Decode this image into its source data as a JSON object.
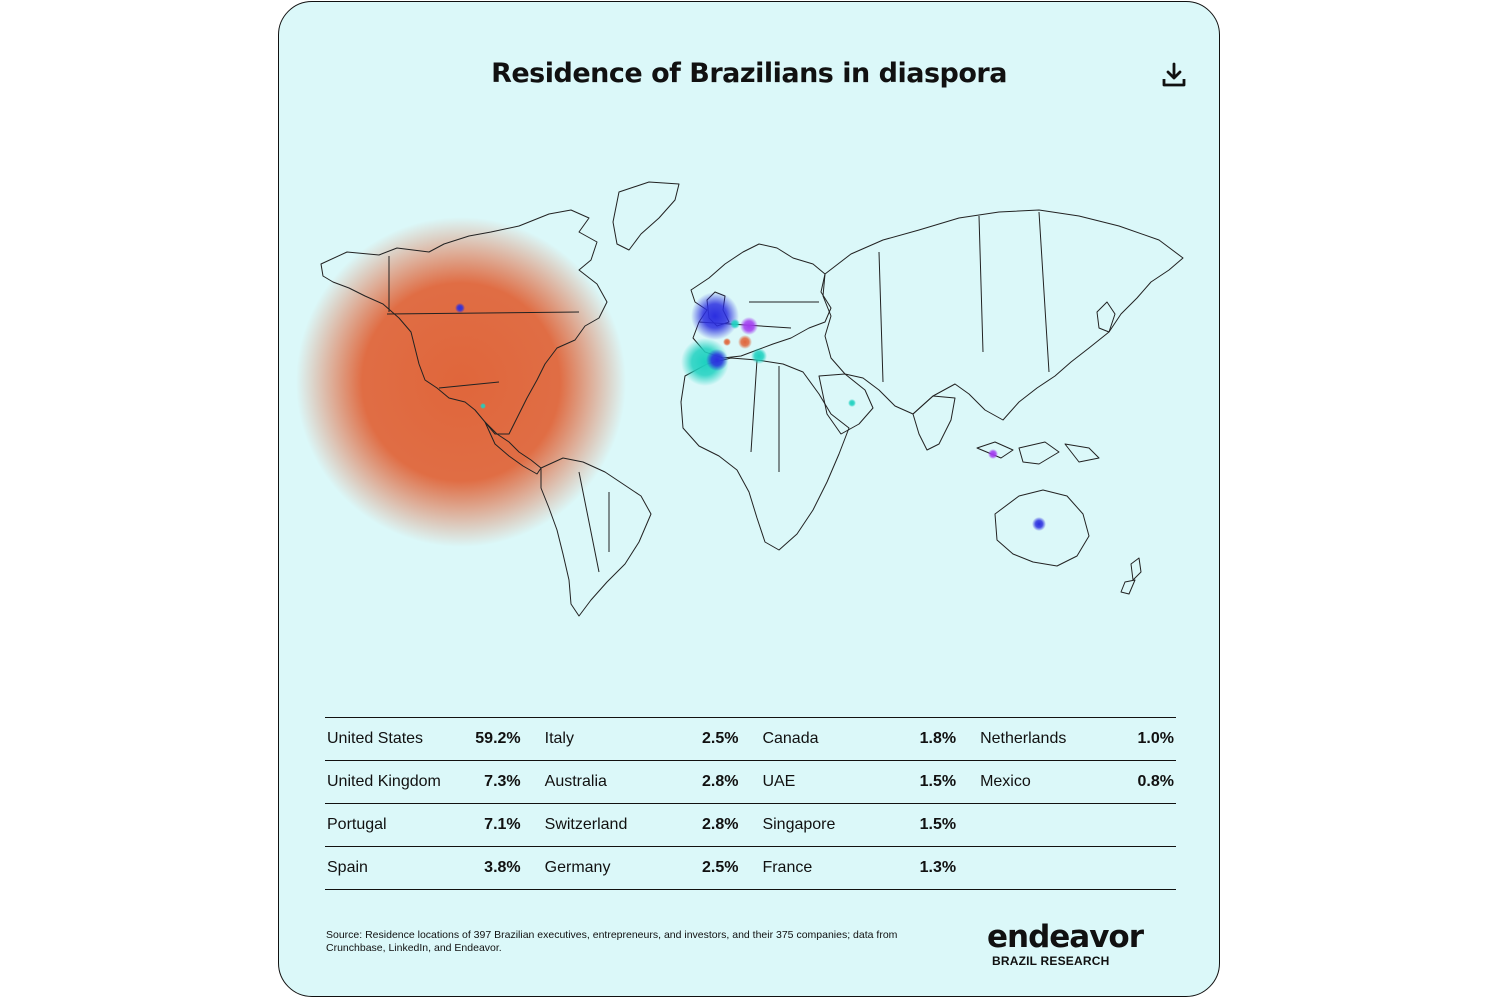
{
  "title": "Residence of Brazilians in diaspora",
  "download_icon": "download-icon",
  "colors": {
    "background": "#dbf8f9",
    "us_bubble": "#e0663b",
    "blue": "#2b2ee0",
    "teal": "#1fd1c0",
    "purple": "#a23cf0",
    "orange": "#e0663b"
  },
  "legend": [
    [
      {
        "name": "United States",
        "value": "59.2%"
      },
      {
        "name": "Italy",
        "value": "2.5%"
      },
      {
        "name": "Canada",
        "value": "1.8%"
      },
      {
        "name": "Netherlands",
        "value": "1.0%"
      }
    ],
    [
      {
        "name": "United Kingdom",
        "value": "7.3%"
      },
      {
        "name": "Australia",
        "value": "2.8%"
      },
      {
        "name": "UAE",
        "value": "1.5%"
      },
      {
        "name": "Mexico",
        "value": "0.8%"
      }
    ],
    [
      {
        "name": "Portugal",
        "value": "7.1%"
      },
      {
        "name": "Switzerland",
        "value": "2.8%"
      },
      {
        "name": "Singapore",
        "value": "1.5%"
      }
    ],
    [
      {
        "name": "Spain",
        "value": "3.8%"
      },
      {
        "name": "Germany",
        "value": "2.5%"
      },
      {
        "name": "France",
        "value": "1.3%"
      }
    ]
  ],
  "source": "Source: Residence locations of 397 Brazilian executives, entrepreneurs, and investors, and their 375 companies; data from Crunchbase, LinkedIn, and Endeavor.",
  "logo": {
    "word": "endeavor",
    "sub": "BRAZIL RESEARCH"
  }
}
